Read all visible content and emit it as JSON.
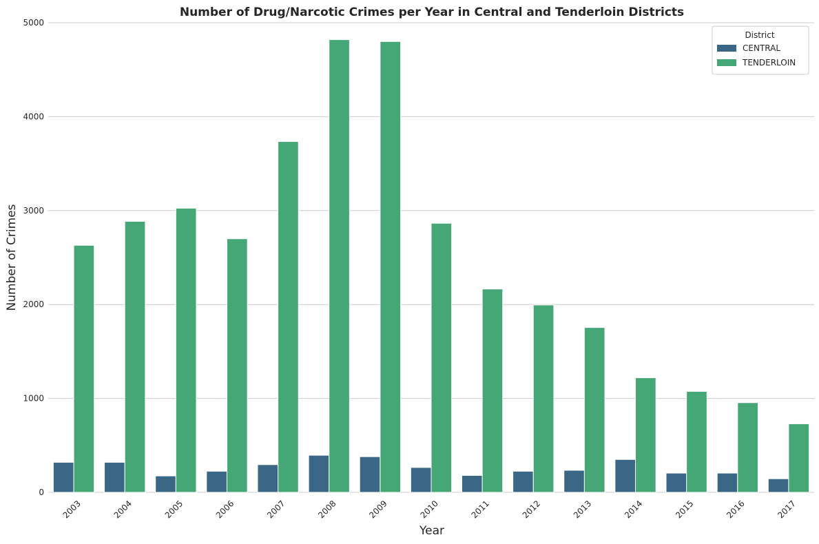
{
  "chart_data": {
    "type": "bar",
    "title": "Number of Drug/Narcotic Crimes per Year in Central and Tenderloin Districts",
    "xlabel": "Year",
    "ylabel": "Number of Crimes",
    "ylim": [
      0,
      5000
    ],
    "yticks": [
      "0",
      "1000",
      "2000",
      "3000",
      "4000",
      "5000"
    ],
    "grid": true,
    "legend": {
      "title": "District",
      "placement": "top-right"
    },
    "categories": [
      "2003",
      "2004",
      "2005",
      "2006",
      "2007",
      "2008",
      "2009",
      "2010",
      "2011",
      "2012",
      "2013",
      "2014",
      "2015",
      "2016",
      "2017"
    ],
    "series": [
      {
        "name": "CENTRAL",
        "color": "#3b6787",
        "values": [
          320,
          320,
          175,
          225,
          295,
          395,
          380,
          265,
          180,
          225,
          235,
          350,
          205,
          205,
          145
        ]
      },
      {
        "name": "TENDERLOIN",
        "color": "#45a776",
        "values": [
          2630,
          2885,
          3025,
          2700,
          3735,
          4820,
          4800,
          2865,
          2165,
          1995,
          1755,
          1220,
          1075,
          955,
          730
        ]
      }
    ]
  }
}
